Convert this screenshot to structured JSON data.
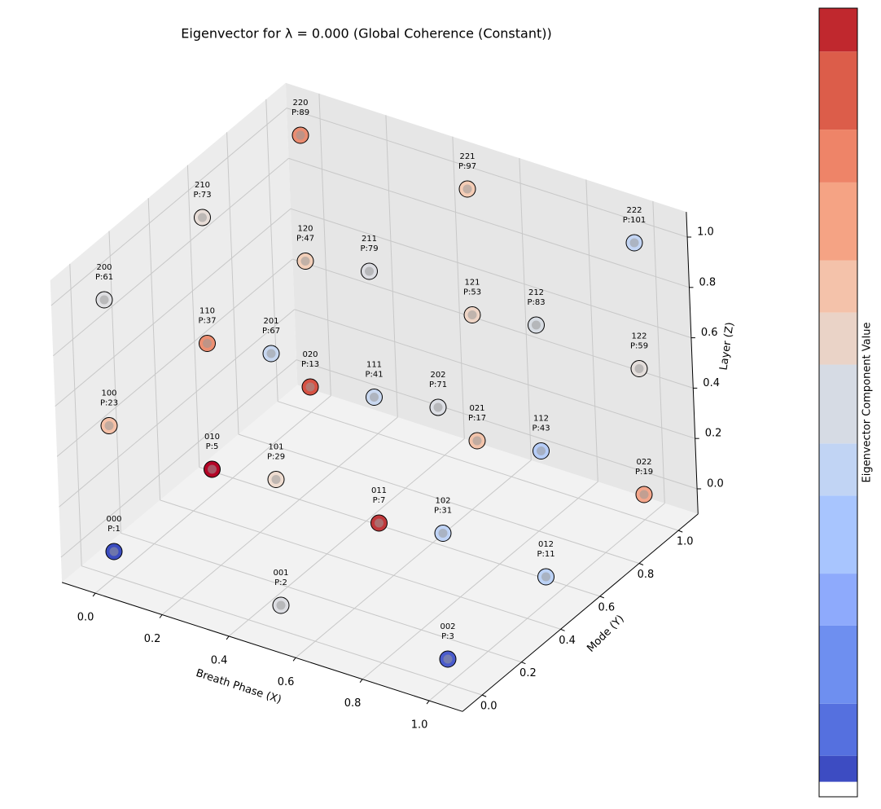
{
  "chart_data": {
    "type": "scatter3d",
    "title": "Eigenvector for λ = 0.000 (Global Coherence (Constant))",
    "xlabel": "Breath Phase (X)",
    "ylabel": "Mode (Y)",
    "zlabel": "Layer (Z)",
    "xlim": [
      -0.1,
      1.1
    ],
    "ylim": [
      -0.1,
      1.1
    ],
    "zlim": [
      -0.1,
      1.1
    ],
    "xticks": [
      {
        "value": 0,
        "label": "0.0"
      },
      {
        "value": 0.2,
        "label": "0.2"
      },
      {
        "value": 0.4,
        "label": "0.4"
      },
      {
        "value": 0.6,
        "label": "0.6"
      },
      {
        "value": 0.8,
        "label": "0.8"
      },
      {
        "value": 1,
        "label": "1.0"
      }
    ],
    "yticks": [
      {
        "value": 0,
        "label": "0.0"
      },
      {
        "value": 0.2,
        "label": "0.2"
      },
      {
        "value": 0.4,
        "label": "0.4"
      },
      {
        "value": 0.6,
        "label": "0.6"
      },
      {
        "value": 0.8,
        "label": "0.8"
      },
      {
        "value": 1,
        "label": "1.0"
      }
    ],
    "zticks": [
      {
        "value": 0,
        "label": "0.0"
      },
      {
        "value": 0.2,
        "label": "0.2"
      },
      {
        "value": 0.4,
        "label": "0.4"
      },
      {
        "value": 0.6,
        "label": "0.6"
      },
      {
        "value": 0.8,
        "label": "0.8"
      },
      {
        "value": 1,
        "label": "1.0"
      }
    ],
    "grid": true,
    "points": [
      {
        "label": "000",
        "annotation": "P:1",
        "x": 0,
        "y": 0,
        "z": 0,
        "color": "#3b4cc0"
      },
      {
        "label": "001",
        "annotation": "P:2",
        "x": 0.5,
        "y": 0,
        "z": 0,
        "color": "#dcdde2"
      },
      {
        "label": "002",
        "annotation": "P:3",
        "x": 1,
        "y": 0,
        "z": 0,
        "color": "#4a5bcc"
      },
      {
        "label": "010",
        "annotation": "P:5",
        "x": 0,
        "y": 0.5,
        "z": 0,
        "color": "#b40426"
      },
      {
        "label": "011",
        "annotation": "P:7",
        "x": 0.5,
        "y": 0.5,
        "z": 0,
        "color": "#c0383b"
      },
      {
        "label": "012",
        "annotation": "P:11",
        "x": 1,
        "y": 0.5,
        "z": 0,
        "color": "#bcd2f6"
      },
      {
        "label": "020",
        "annotation": "P:13",
        "x": 0,
        "y": 1,
        "z": 0,
        "color": "#d65244"
      },
      {
        "label": "021",
        "annotation": "P:17",
        "x": 0.5,
        "y": 1,
        "z": 0,
        "color": "#f2c3aa"
      },
      {
        "label": "022",
        "annotation": "P:19",
        "x": 1,
        "y": 1,
        "z": 0,
        "color": "#f4a68b"
      },
      {
        "label": "100",
        "annotation": "P:23",
        "x": 0,
        "y": 0,
        "z": 0.5,
        "color": "#f5c0a7"
      },
      {
        "label": "101",
        "annotation": "P:29",
        "x": 0.5,
        "y": 0,
        "z": 0.5,
        "color": "#efdcd0"
      },
      {
        "label": "102",
        "annotation": "P:31",
        "x": 1,
        "y": 0,
        "z": 0.5,
        "color": "#bfd3f6"
      },
      {
        "label": "110",
        "annotation": "P:37",
        "x": 0,
        "y": 0.5,
        "z": 0.5,
        "color": "#ec8f72"
      },
      {
        "label": "111",
        "annotation": "P:41",
        "x": 0.5,
        "y": 0.5,
        "z": 0.5,
        "color": "#c9d8f0"
      },
      {
        "label": "112",
        "annotation": "P:43",
        "x": 1,
        "y": 0.5,
        "z": 0.5,
        "color": "#b6cdf8"
      },
      {
        "label": "120",
        "annotation": "P:47",
        "x": 0,
        "y": 1,
        "z": 0.5,
        "color": "#f2cfb9"
      },
      {
        "label": "121",
        "annotation": "P:53",
        "x": 0.5,
        "y": 1,
        "z": 0.5,
        "color": "#efd5c6"
      },
      {
        "label": "122",
        "annotation": "P:59",
        "x": 1,
        "y": 1,
        "z": 0.5,
        "color": "#e4dedb"
      },
      {
        "label": "200",
        "annotation": "P:61",
        "x": 0,
        "y": 0,
        "z": 1,
        "color": "#dfdfe2"
      },
      {
        "label": "201",
        "annotation": "P:67",
        "x": 0.5,
        "y": 0,
        "z": 1,
        "color": "#c7d7f0"
      },
      {
        "label": "202",
        "annotation": "P:71",
        "x": 1,
        "y": 0,
        "z": 1,
        "color": "#dcdee4"
      },
      {
        "label": "210",
        "annotation": "P:73",
        "x": 0,
        "y": 0.5,
        "z": 1,
        "color": "#e8ddd7"
      },
      {
        "label": "211",
        "annotation": "P:79",
        "x": 0.5,
        "y": 0.5,
        "z": 1,
        "color": "#dcdde2"
      },
      {
        "label": "212",
        "annotation": "P:83",
        "x": 1,
        "y": 0.5,
        "z": 1,
        "color": "#d7dce3"
      },
      {
        "label": "220",
        "annotation": "P:89",
        "x": 0,
        "y": 1,
        "z": 1,
        "color": "#ea8d72"
      },
      {
        "label": "221",
        "annotation": "P:97",
        "x": 0.5,
        "y": 1,
        "z": 1,
        "color": "#f5cdb6"
      },
      {
        "label": "222",
        "annotation": "P:101",
        "x": 1,
        "y": 1,
        "z": 1,
        "color": "#c3d5f4"
      }
    ],
    "colorbar": {
      "label": "Eigenvector Component Value",
      "colors": [
        "#ffffff",
        "#3d4cc2",
        "#5570df",
        "#6e8ff0",
        "#8eaafc",
        "#a8c5fe",
        "#c1d4f4",
        "#d6dbe4",
        "#ead3c7",
        "#f4c2aa",
        "#f5a384",
        "#ee8468",
        "#dc5d4a",
        "#c0282e"
      ],
      "bounds": [
        0,
        0.019,
        0.052,
        0.118,
        0.217,
        0.283,
        0.382,
        0.448,
        0.548,
        0.614,
        0.68,
        0.779,
        0.846,
        0.945,
        1
      ]
    }
  }
}
